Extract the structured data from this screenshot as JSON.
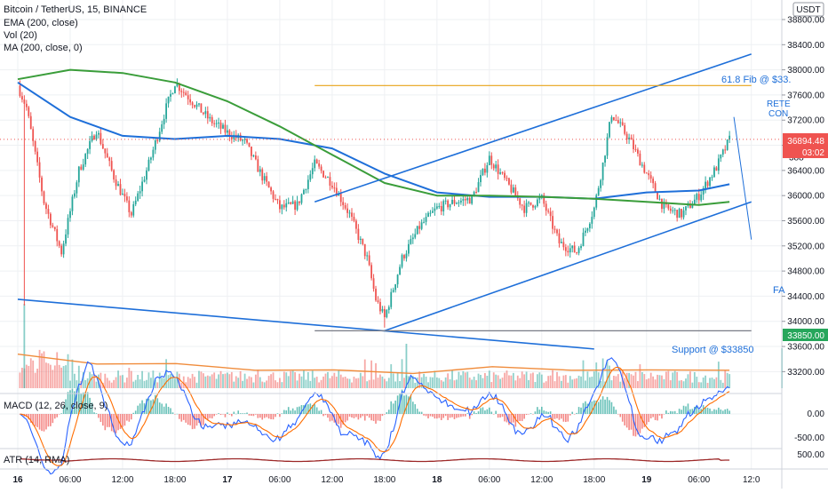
{
  "header": {
    "title": "Bitcoin / TetherUS, 15, BINANCE",
    "indicators": [
      "EMA (200, close)",
      "Vol (20)",
      "MA (200, close, 0)"
    ],
    "currency": "USDT"
  },
  "price_axis": {
    "ticks": [
      "38800.00",
      "38400.00",
      "38000.00",
      "37600.00",
      "37200.00",
      "36800.00",
      "36400.00",
      "36000.00",
      "35600.00",
      "35200.00",
      "34800.00",
      "34400.00",
      "34000.00",
      "33600.00",
      "33200.00"
    ],
    "current_price": "36894.48",
    "countdown": "03:02",
    "support_price": "33850.00",
    "top_partial": "388"
  },
  "macd": {
    "label": "MACD (12, 26, close, 9)",
    "ticks": [
      "0.00",
      "-500.00"
    ]
  },
  "atr": {
    "label": "ATR (14, RMA)",
    "ticks": [
      "500.00"
    ]
  },
  "time_axis": {
    "labels": [
      "16",
      "06:00",
      "12:00",
      "18:00",
      "17",
      "06:00",
      "12:00",
      "18:00",
      "18",
      "06:00",
      "12:00",
      "18:00",
      "19",
      "06:00",
      "12:0"
    ]
  },
  "annotations": {
    "fib": "61.8 Fib @ $33.",
    "support": "Support @ $33850",
    "retest_line1": "RETE",
    "retest_line2": "CON",
    "fall": "FA"
  },
  "colors": {
    "up": "#26a69a",
    "down": "#ef5350",
    "ema": "#1e6fd9",
    "ma": "#3a9d3a",
    "trendline": "#1e6fd9",
    "fib_line": "#e8a317",
    "support_label_bg": "#26a65b",
    "price_label_bg": "#ef5350",
    "macd_line": "#2962ff",
    "signal_line": "#ff6d00",
    "atr_line": "#9c2727",
    "vol_ma": "#f08c3c"
  },
  "chart_data": {
    "type": "line",
    "title": "Bitcoin / TetherUS, 15, BINANCE",
    "x_range": [
      "16 00:00",
      "19 12:00"
    ],
    "ylim": [
      33000,
      38900
    ],
    "y_unit": "USDT",
    "price_waypoints": {
      "x": [
        "16 00:00",
        "16 01:00",
        "16 03:00",
        "16 05:00",
        "16 07:00",
        "16 09:00",
        "16 11:00",
        "16 13:00",
        "16 15:00",
        "16 17:00",
        "16 18:00",
        "16 20:00",
        "16 22:00",
        "17 00:00",
        "17 02:00",
        "17 04:00",
        "17 06:00",
        "17 08:00",
        "17 10:00",
        "17 12:00",
        "17 14:00",
        "17 16:00",
        "17 17:00",
        "17 18:00",
        "17 20:00",
        "17 22:00",
        "18 00:00",
        "18 02:00",
        "18 04:00",
        "18 06:00",
        "18 08:00",
        "18 10:00",
        "18 12:00",
        "18 14:00",
        "18 16:00",
        "18 18:00",
        "18 19:00",
        "18 20:00",
        "18 22:00",
        "19 00:00",
        "19 02:00",
        "19 04:00",
        "19 06:00",
        "19 08:00",
        "19 09:30"
      ],
      "close": [
        37750,
        37400,
        35900,
        35100,
        36400,
        37050,
        36300,
        35700,
        36500,
        37400,
        37800,
        37500,
        37200,
        37000,
        36850,
        36300,
        35800,
        35850,
        36500,
        36200,
        35700,
        35000,
        34350,
        34050,
        35000,
        35500,
        35800,
        35900,
        35950,
        36600,
        36200,
        35800,
        35950,
        35250,
        35100,
        35800,
        36500,
        37300,
        36900,
        36350,
        35800,
        35700,
        36000,
        36450,
        36894.48
      ]
    },
    "volume_ma_approx": [
      33450,
      33350,
      33300,
      33250,
      33200,
      33200,
      33250,
      33250,
      33200,
      33250
    ],
    "series": [
      {
        "name": "EMA (200, close)",
        "x": [
          "16 00:00",
          "16 06:00",
          "16 12:00",
          "16 18:00",
          "17 00:00",
          "17 06:00",
          "17 12:00",
          "17 18:00",
          "18 00:00",
          "18 06:00",
          "18 12:00",
          "18 18:00",
          "19 00:00",
          "19 06:00",
          "19 09:30"
        ],
        "values": [
          37800,
          37250,
          36950,
          36900,
          36950,
          36900,
          36750,
          36350,
          36050,
          35980,
          35980,
          35950,
          36050,
          36080,
          36180
        ]
      },
      {
        "name": "MA (200, close, 0)",
        "x": [
          "16 00:00",
          "16 06:00",
          "16 12:00",
          "16 18:00",
          "17 00:00",
          "17 06:00",
          "17 12:00",
          "17 18:00",
          "18 00:00",
          "18 06:00",
          "18 12:00",
          "18 18:00",
          "19 00:00",
          "19 06:00",
          "19 09:30"
        ],
        "values": [
          37850,
          38000,
          37950,
          37800,
          37500,
          37100,
          36650,
          36200,
          36000,
          36000,
          35980,
          35950,
          35900,
          35850,
          35900
        ]
      }
    ],
    "lines_drawn": [
      {
        "kind": "trendline",
        "from": [
          "17 10:00",
          35900
        ],
        "to": [
          "19 12:00",
          38250
        ]
      },
      {
        "kind": "trendline",
        "from": [
          "17 18:00",
          33850
        ],
        "to": [
          "19 12:00",
          35900
        ]
      },
      {
        "kind": "trendline",
        "from": [
          "16 00:00",
          34350
        ],
        "to": [
          "18 18:00",
          33560
        ]
      },
      {
        "kind": "horizontal",
        "price": 37750,
        "from": "17 10:00",
        "to": "19 12:00"
      },
      {
        "kind": "horizontal",
        "price": 33850,
        "from": "17 10:00",
        "to": "19 12:00"
      },
      {
        "kind": "trendline",
        "from": [
          "19 10:00",
          37250
        ],
        "to": [
          "19 12:00",
          35300
        ]
      }
    ]
  }
}
